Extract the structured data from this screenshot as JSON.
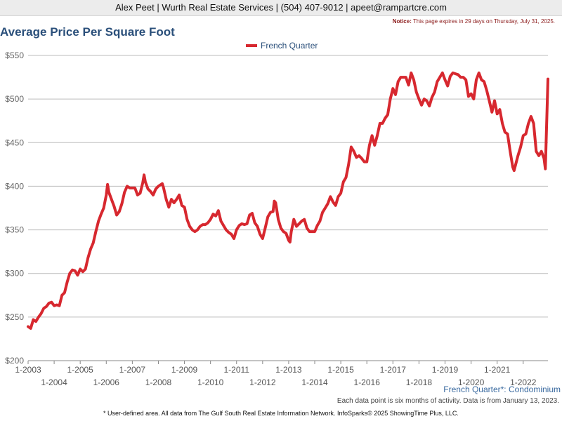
{
  "header": {
    "text": "Alex Peet | Wurth Real Estate Services | (504) 407-9012 | apeet@rampartcre.com"
  },
  "notice": {
    "label": "Notice:",
    "text": " This page expires in 29 days on Thursday, July 31, 2025."
  },
  "subtitle_right": "French Quarter*: Condominium",
  "data_note": "Each data point is six months of activity. Data is from January 13, 2023.",
  "footer_note": "* User-defined area. All data from The Gulf South Real Estate Information Network. InfoSparks© 2025 ShowingTime Plus, LLC.",
  "colors": {
    "series": "#d7282f",
    "title": "#2a4f7a",
    "grid": "#bbbbbb"
  },
  "chart_data": {
    "type": "line",
    "title": "Average Price Per Square Foot",
    "legend_position": "top-center",
    "grid": true,
    "xlim": [
      2003.0,
      2022.95
    ],
    "ylim": [
      200,
      550
    ],
    "y_ticks": [
      200,
      250,
      300,
      350,
      400,
      450,
      500,
      550
    ],
    "y_tick_labels": [
      "$200",
      "$250",
      "$300",
      "$350",
      "$400",
      "$450",
      "$500",
      "$550"
    ],
    "x_ticks": [
      2003,
      2004,
      2005,
      2006,
      2007,
      2008,
      2009,
      2010,
      2011,
      2012,
      2013,
      2014,
      2015,
      2016,
      2017,
      2018,
      2019,
      2020,
      2021,
      2022
    ],
    "x_tick_labels": [
      "1-2003",
      "1-2004",
      "1-2005",
      "1-2006",
      "1-2007",
      "1-2008",
      "1-2009",
      "1-2010",
      "1-2011",
      "1-2012",
      "1-2013",
      "1-2014",
      "1-2015",
      "1-2016",
      "1-2017",
      "1-2018",
      "1-2019",
      "1-2020",
      "1-2021",
      "1-2022"
    ],
    "series": [
      {
        "name": "French Quarter",
        "points": [
          [
            2003.0,
            239
          ],
          [
            2003.1,
            237
          ],
          [
            2003.2,
            247
          ],
          [
            2003.3,
            245
          ],
          [
            2003.4,
            250
          ],
          [
            2003.5,
            254
          ],
          [
            2003.6,
            260
          ],
          [
            2003.7,
            262
          ],
          [
            2003.8,
            266
          ],
          [
            2003.9,
            267
          ],
          [
            2004.0,
            263
          ],
          [
            2004.1,
            264
          ],
          [
            2004.2,
            263
          ],
          [
            2004.3,
            275
          ],
          [
            2004.4,
            278
          ],
          [
            2004.5,
            290
          ],
          [
            2004.6,
            300
          ],
          [
            2004.7,
            304
          ],
          [
            2004.8,
            303
          ],
          [
            2004.9,
            298
          ],
          [
            2005.0,
            305
          ],
          [
            2005.1,
            302
          ],
          [
            2005.2,
            305
          ],
          [
            2005.3,
            318
          ],
          [
            2005.4,
            328
          ],
          [
            2005.5,
            335
          ],
          [
            2005.6,
            348
          ],
          [
            2005.7,
            360
          ],
          [
            2005.8,
            368
          ],
          [
            2005.9,
            375
          ],
          [
            2006.0,
            390
          ],
          [
            2006.05,
            402
          ],
          [
            2006.1,
            393
          ],
          [
            2006.2,
            385
          ],
          [
            2006.3,
            377
          ],
          [
            2006.4,
            367
          ],
          [
            2006.5,
            371
          ],
          [
            2006.6,
            380
          ],
          [
            2006.7,
            393
          ],
          [
            2006.8,
            400
          ],
          [
            2006.9,
            398
          ],
          [
            2007.0,
            398
          ],
          [
            2007.1,
            398
          ],
          [
            2007.2,
            390
          ],
          [
            2007.3,
            392
          ],
          [
            2007.4,
            404
          ],
          [
            2007.45,
            413
          ],
          [
            2007.5,
            405
          ],
          [
            2007.6,
            397
          ],
          [
            2007.7,
            394
          ],
          [
            2007.8,
            390
          ],
          [
            2007.9,
            397
          ],
          [
            2008.0,
            400
          ],
          [
            2008.1,
            402
          ],
          [
            2008.15,
            403
          ],
          [
            2008.2,
            398
          ],
          [
            2008.3,
            385
          ],
          [
            2008.4,
            376
          ],
          [
            2008.5,
            385
          ],
          [
            2008.6,
            381
          ],
          [
            2008.7,
            385
          ],
          [
            2008.8,
            390
          ],
          [
            2008.9,
            378
          ],
          [
            2009.0,
            376
          ],
          [
            2009.1,
            362
          ],
          [
            2009.2,
            354
          ],
          [
            2009.3,
            350
          ],
          [
            2009.4,
            348
          ],
          [
            2009.5,
            350
          ],
          [
            2009.6,
            354
          ],
          [
            2009.7,
            356
          ],
          [
            2009.8,
            356
          ],
          [
            2009.9,
            358
          ],
          [
            2010.0,
            362
          ],
          [
            2010.1,
            368
          ],
          [
            2010.2,
            366
          ],
          [
            2010.3,
            372
          ],
          [
            2010.4,
            360
          ],
          [
            2010.5,
            355
          ],
          [
            2010.6,
            350
          ],
          [
            2010.7,
            347
          ],
          [
            2010.8,
            345
          ],
          [
            2010.9,
            340
          ],
          [
            2011.0,
            350
          ],
          [
            2011.1,
            355
          ],
          [
            2011.2,
            357
          ],
          [
            2011.3,
            356
          ],
          [
            2011.4,
            357
          ],
          [
            2011.5,
            367
          ],
          [
            2011.6,
            369
          ],
          [
            2011.7,
            358
          ],
          [
            2011.8,
            354
          ],
          [
            2011.9,
            345
          ],
          [
            2012.0,
            340
          ],
          [
            2012.1,
            352
          ],
          [
            2012.2,
            365
          ],
          [
            2012.3,
            370
          ],
          [
            2012.4,
            371
          ],
          [
            2012.45,
            383
          ],
          [
            2012.5,
            381
          ],
          [
            2012.6,
            362
          ],
          [
            2012.7,
            352
          ],
          [
            2012.8,
            348
          ],
          [
            2012.9,
            346
          ],
          [
            2013.0,
            338
          ],
          [
            2013.05,
            336
          ],
          [
            2013.1,
            348
          ],
          [
            2013.2,
            362
          ],
          [
            2013.3,
            354
          ],
          [
            2013.4,
            357
          ],
          [
            2013.5,
            360
          ],
          [
            2013.6,
            362
          ],
          [
            2013.7,
            352
          ],
          [
            2013.8,
            348
          ],
          [
            2013.9,
            348
          ],
          [
            2014.0,
            348
          ],
          [
            2014.1,
            355
          ],
          [
            2014.2,
            360
          ],
          [
            2014.3,
            370
          ],
          [
            2014.4,
            375
          ],
          [
            2014.5,
            380
          ],
          [
            2014.6,
            388
          ],
          [
            2014.7,
            382
          ],
          [
            2014.8,
            378
          ],
          [
            2014.9,
            388
          ],
          [
            2015.0,
            392
          ],
          [
            2015.1,
            405
          ],
          [
            2015.2,
            410
          ],
          [
            2015.3,
            425
          ],
          [
            2015.4,
            445
          ],
          [
            2015.5,
            440
          ],
          [
            2015.6,
            433
          ],
          [
            2015.7,
            435
          ],
          [
            2015.8,
            432
          ],
          [
            2015.9,
            428
          ],
          [
            2016.0,
            428
          ],
          [
            2016.1,
            447
          ],
          [
            2016.2,
            458
          ],
          [
            2016.3,
            447
          ],
          [
            2016.4,
            458
          ],
          [
            2016.5,
            472
          ],
          [
            2016.6,
            472
          ],
          [
            2016.7,
            478
          ],
          [
            2016.8,
            482
          ],
          [
            2016.9,
            500
          ],
          [
            2017.0,
            512
          ],
          [
            2017.1,
            505
          ],
          [
            2017.2,
            520
          ],
          [
            2017.3,
            525
          ],
          [
            2017.4,
            525
          ],
          [
            2017.5,
            525
          ],
          [
            2017.6,
            516
          ],
          [
            2017.7,
            530
          ],
          [
            2017.8,
            522
          ],
          [
            2017.9,
            508
          ],
          [
            2018.0,
            500
          ],
          [
            2018.1,
            493
          ],
          [
            2018.2,
            500
          ],
          [
            2018.3,
            498
          ],
          [
            2018.4,
            492
          ],
          [
            2018.5,
            502
          ],
          [
            2018.6,
            508
          ],
          [
            2018.7,
            520
          ],
          [
            2018.8,
            525
          ],
          [
            2018.9,
            530
          ],
          [
            2019.0,
            522
          ],
          [
            2019.1,
            515
          ],
          [
            2019.2,
            526
          ],
          [
            2019.3,
            530
          ],
          [
            2019.4,
            529
          ],
          [
            2019.5,
            528
          ],
          [
            2019.6,
            525
          ],
          [
            2019.7,
            525
          ],
          [
            2019.8,
            522
          ],
          [
            2019.9,
            503
          ],
          [
            2020.0,
            506
          ],
          [
            2020.1,
            500
          ],
          [
            2020.2,
            522
          ],
          [
            2020.3,
            530
          ],
          [
            2020.4,
            522
          ],
          [
            2020.5,
            520
          ],
          [
            2020.6,
            510
          ],
          [
            2020.7,
            498
          ],
          [
            2020.8,
            485
          ],
          [
            2020.9,
            498
          ],
          [
            2021.0,
            483
          ],
          [
            2021.1,
            488
          ],
          [
            2021.2,
            472
          ],
          [
            2021.3,
            462
          ],
          [
            2021.4,
            460
          ],
          [
            2021.5,
            440
          ],
          [
            2021.6,
            422
          ],
          [
            2021.65,
            418
          ],
          [
            2021.8,
            435
          ],
          [
            2021.9,
            445
          ],
          [
            2022.0,
            458
          ],
          [
            2022.1,
            460
          ],
          [
            2022.2,
            472
          ],
          [
            2022.3,
            480
          ],
          [
            2022.4,
            472
          ],
          [
            2022.5,
            440
          ],
          [
            2022.6,
            435
          ],
          [
            2022.7,
            440
          ],
          [
            2022.8,
            432
          ],
          [
            2022.85,
            420
          ],
          [
            2022.95,
            523
          ]
        ]
      }
    ]
  }
}
